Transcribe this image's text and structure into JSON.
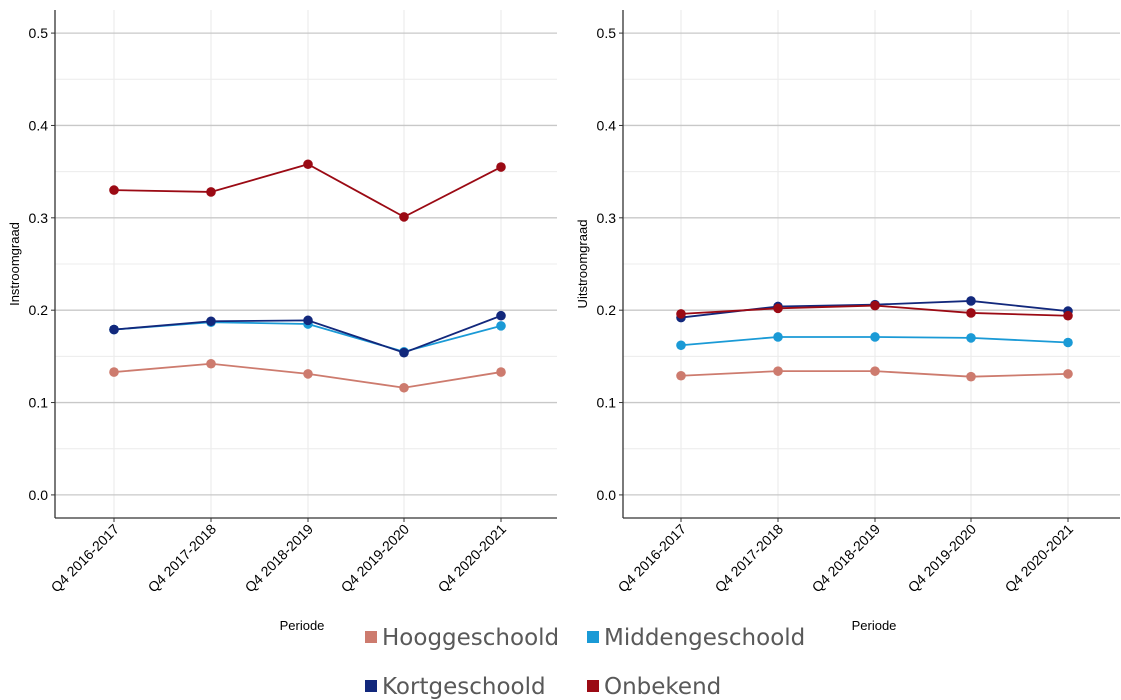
{
  "chart_data": [
    {
      "type": "line",
      "ylabel": "Instroomgraad",
      "xlabel": "Periode",
      "categories": [
        "Q4 2016-2017",
        "Q4 2017-2018",
        "Q4 2018-2019",
        "Q4 2019-2020",
        "Q4 2020-2021"
      ],
      "ylim": [
        -0.025,
        0.525
      ],
      "yticks": [
        "0.0",
        "0.1",
        "0.2",
        "0.3",
        "0.4",
        "0.5"
      ],
      "grid": true,
      "series": [
        {
          "name": "Hooggeschoold",
          "color": "#cd7b6e",
          "values": [
            0.133,
            0.142,
            0.131,
            0.116,
            0.133
          ]
        },
        {
          "name": "Middengeschoold",
          "color": "#1a9ad6",
          "values": [
            0.179,
            0.187,
            0.185,
            0.155,
            0.183
          ]
        },
        {
          "name": "Kortgeschoold",
          "color": "#12287c",
          "values": [
            0.179,
            0.188,
            0.189,
            0.154,
            0.194
          ]
        },
        {
          "name": "Onbekend",
          "color": "#9b0a14",
          "values": [
            0.33,
            0.328,
            0.358,
            0.301,
            0.355
          ]
        }
      ]
    },
    {
      "type": "line",
      "ylabel": "Uitstroomgraad",
      "xlabel": "Periode",
      "categories": [
        "Q4 2016-2017",
        "Q4 2017-2018",
        "Q4 2018-2019",
        "Q4 2019-2020",
        "Q4 2020-2021"
      ],
      "ylim": [
        -0.025,
        0.525
      ],
      "yticks": [
        "0.0",
        "0.1",
        "0.2",
        "0.3",
        "0.4",
        "0.5"
      ],
      "grid": true,
      "series": [
        {
          "name": "Hooggeschoold",
          "color": "#cd7b6e",
          "values": [
            0.129,
            0.134,
            0.134,
            0.128,
            0.131
          ]
        },
        {
          "name": "Middengeschoold",
          "color": "#1a9ad6",
          "values": [
            0.162,
            0.171,
            0.171,
            0.17,
            0.165
          ]
        },
        {
          "name": "Kortgeschoold",
          "color": "#12287c",
          "values": [
            0.192,
            0.204,
            0.206,
            0.21,
            0.199
          ]
        },
        {
          "name": "Onbekend",
          "color": "#9b0a14",
          "values": [
            0.196,
            0.202,
            0.205,
            0.197,
            0.194
          ]
        }
      ]
    }
  ],
  "legend": {
    "items": [
      {
        "label": "Hooggeschoold",
        "color": "#cd7b6e"
      },
      {
        "label": "Middengeschoold",
        "color": "#1a9ad6"
      },
      {
        "label": "Kortgeschoold",
        "color": "#12287c"
      },
      {
        "label": "Onbekend",
        "color": "#9b0a14"
      }
    ]
  }
}
